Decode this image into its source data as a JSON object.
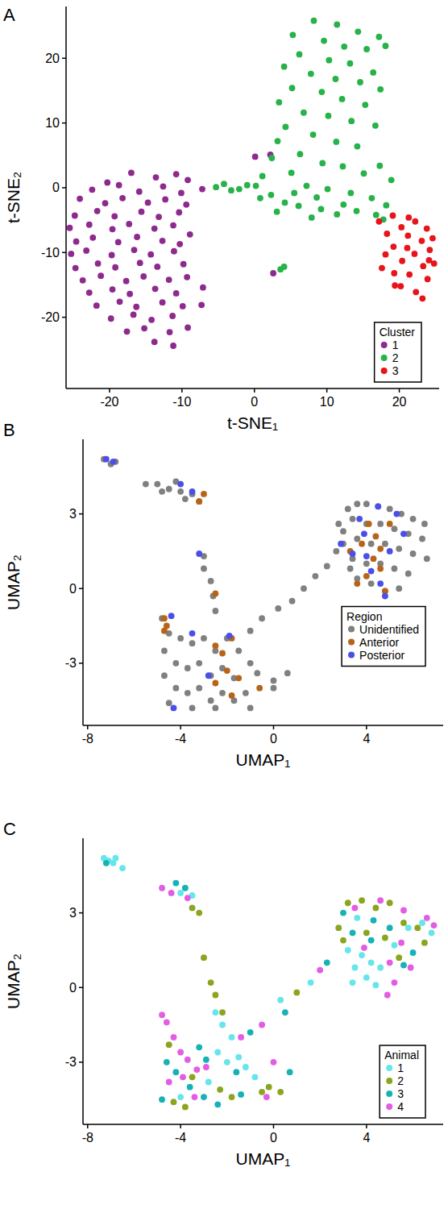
{
  "chart_data": [
    {
      "type": "scatter",
      "title": "A",
      "x_label": "t-SNE₁",
      "y_label": "t-SNE₂",
      "legend_title": "Cluster",
      "legend": "lower right",
      "marker": "circle",
      "grid": false,
      "xlim": [
        -26,
        25.5
      ],
      "ylim": [
        -31,
        28
      ],
      "xticks": [
        -20,
        -10,
        0,
        10,
        20
      ],
      "yticks": [
        -20,
        -10,
        0,
        10,
        20
      ],
      "series": [
        {
          "name": "1",
          "color": "#8e2a8e",
          "x": [
            -17,
            -13.6,
            -10.8,
            -20.3,
            -9.2,
            -22.4,
            -18.7,
            -15.9,
            -12.6,
            -10.1,
            -7.2,
            -24.1,
            -20.6,
            -18.2,
            -14.7,
            -12.3,
            -9.4,
            -24.8,
            -21.7,
            -19.3,
            -15.6,
            -13.2,
            -10.4,
            -25.5,
            -22.8,
            -19.6,
            -17.3,
            -13.8,
            -11.2,
            -8.9,
            -24.6,
            -22.3,
            -18.8,
            -16.2,
            -12.7,
            -10.3,
            -25.3,
            -23.2,
            -19.7,
            -16.6,
            -14.3,
            -11.1,
            -24.7,
            -21.6,
            -19.2,
            -15.8,
            -13.4,
            -9.8,
            -23.7,
            -21.2,
            -17.7,
            -15.3,
            -11.8,
            -9.3,
            -22.8,
            -19.6,
            -17.2,
            -13.7,
            -10.8,
            -21.8,
            -18.6,
            -16.3,
            -12.7,
            -9.9,
            -19.8,
            -16.7,
            -14.2,
            -11.3,
            -17.6,
            -15.2,
            -11.7,
            -9.2,
            -13.8,
            -11.2,
            -7.1,
            -7.3,
            2.6,
            0.1,
            2.2
          ],
          "values": [
            2.3,
            1.6,
            2.1,
            0.8,
            1.2,
            -0.3,
            0.4,
            -0.6,
            0.2,
            -0.8,
            -0.2,
            -1.7,
            -2.4,
            -1.6,
            -2.3,
            -1.8,
            -2.6,
            -4.3,
            -3.6,
            -4.4,
            -3.7,
            -4.5,
            -3.8,
            -6.2,
            -5.7,
            -6.4,
            -5.6,
            -6.3,
            -5.8,
            -7.2,
            -8.3,
            -7.7,
            -8.4,
            -7.6,
            -8.2,
            -8.7,
            -10.2,
            -9.7,
            -10.4,
            -9.6,
            -10.3,
            -9.8,
            -12.4,
            -11.7,
            -12.3,
            -11.6,
            -12.2,
            -11.8,
            -14.3,
            -13.6,
            -14.4,
            -13.7,
            -14.2,
            -13.8,
            -16.2,
            -15.7,
            -16.4,
            -15.6,
            -16.3,
            -18.2,
            -17.6,
            -18.4,
            -17.7,
            -18.3,
            -20.2,
            -19.6,
            -20.4,
            -19.8,
            -22.2,
            -21.7,
            -22.3,
            -21.6,
            -23.8,
            -24.4,
            -15.4,
            -18.1,
            -13.2,
            4.8,
            5.1
          ]
        },
        {
          "name": "2",
          "color": "#27b24a",
          "x": [
            8.2,
            11.4,
            14.3,
            17.2,
            5.3,
            9.6,
            12.4,
            15.5,
            18.1,
            6.2,
            10.3,
            13.2,
            16.4,
            4.1,
            7.8,
            11.2,
            14.6,
            17.4,
            5.2,
            9.3,
            12.1,
            15.3,
            3.4,
            6.8,
            10.2,
            13.4,
            16.7,
            4.3,
            8.1,
            11.3,
            14.2,
            6.3,
            9.4,
            12.2,
            15.1,
            17.3,
            3.2,
            2.4,
            5.1,
            7.2,
            10.1,
            13.3,
            16.2,
            18.2,
            1.1,
            0.2,
            -2.1,
            -4.2,
            -5.3,
            2.3,
            4.2,
            6.1,
            9.2,
            11.4,
            14.1,
            16.8,
            18.9,
            0.8,
            3.1,
            7.9,
            12.3,
            3.6,
            4.1,
            17.8,
            5.5,
            8.6,
            -1,
            -3.2
          ],
          "values": [
            25.8,
            25.2,
            24.1,
            23.3,
            23.6,
            22.7,
            21.8,
            21.4,
            21.9,
            20.6,
            19.7,
            19.2,
            17.8,
            18.7,
            17.6,
            16.8,
            16.3,
            15.2,
            15.4,
            14.8,
            13.7,
            12.8,
            13.2,
            11.6,
            11.1,
            10.3,
            9.6,
            9.4,
            8.2,
            7.1,
            6.4,
            5.2,
            3.8,
            3.3,
            2.2,
            3.4,
            7.2,
            4.6,
            2.3,
            0.3,
            -0.2,
            -0.8,
            -1.6,
            -2.7,
            1.8,
            0.3,
            -0.2,
            0.6,
            0.1,
            -1.1,
            -2.3,
            -2.8,
            -3.3,
            -4.1,
            -3.6,
            -4.2,
            1.2,
            -1.6,
            -3.7,
            -4.6,
            -2.6,
            -12.6,
            -12.2,
            -4.9,
            -0.8,
            -1.5,
            0.4,
            -0.4
          ]
        },
        {
          "name": "3",
          "color": "#e8141c",
          "x": [
            17.2,
            19.1,
            20.3,
            22.2,
            23.8,
            18.3,
            21.2,
            23.1,
            24.6,
            19.2,
            22.1,
            24.2,
            20.4,
            23.3,
            24.8,
            19.3,
            21.4,
            23.9,
            20.2,
            22.3,
            23.2,
            18.1,
            17.6,
            21.1,
            24.1,
            19.4,
            21.3
          ],
          "values": [
            -5.2,
            -4.3,
            -6.1,
            -5.2,
            -6.3,
            -7.1,
            -7.4,
            -8.2,
            -7.8,
            -9.1,
            -10.2,
            -9.6,
            -11.3,
            -12.1,
            -11.7,
            -13.2,
            -13.4,
            -14.1,
            -15.2,
            -16.1,
            -17.1,
            -10.3,
            -12.4,
            -9.3,
            -11.2,
            -15.1,
            -4.6
          ]
        }
      ]
    },
    {
      "type": "scatter",
      "title": "B",
      "x_label": "UMAP₁",
      "y_label": "UMAP₂",
      "legend_title": "Region",
      "legend": "center right",
      "marker": "circle",
      "grid": false,
      "xlim": [
        -8.2,
        7.3
      ],
      "ylim": [
        -5.5,
        6
      ],
      "xticks": [
        -8,
        -4,
        0,
        4
      ],
      "yticks": [
        -3,
        0,
        3
      ],
      "series": [
        {
          "name": "Unidentified",
          "color": "#808080",
          "x": [
            -7.3,
            -7,
            -6.8,
            -5.5,
            -5,
            -4.5,
            -4,
            -3.5,
            -4.8,
            -3.2,
            -4.2,
            -3.8,
            -3,
            -3,
            -2.7,
            -2.6,
            -2.5,
            -4.8,
            -4.5,
            -4,
            -3.5,
            -3,
            -2.5,
            -2,
            -1.5,
            -1,
            -4.7,
            -4.2,
            -3.7,
            -3.2,
            -2.7,
            -2.2,
            -1.7,
            -0.7,
            0,
            -4.7,
            -4.2,
            -3.7,
            -3.2,
            -2.7,
            -2.2,
            -1.7,
            -1.2,
            -4.5,
            -3.5,
            -2.5,
            -1,
            0,
            0.6,
            -1,
            -0.5,
            0.2,
            0.8,
            1.3,
            1.8,
            2.3,
            2.7,
            3,
            3.2,
            3.6,
            4,
            4.5,
            5,
            5.5,
            6,
            6.5,
            2.8,
            3.4,
            4,
            4.6,
            5.2,
            5.8,
            6.4,
            3,
            3.6,
            4.2,
            4.8,
            5.4,
            6,
            6.6,
            3.4,
            4,
            4.6,
            5.2,
            5.8,
            3.6,
            4.2,
            4.8,
            5.4,
            3.3
          ],
          "values": [
            5.2,
            5,
            5.1,
            4.2,
            4.2,
            4,
            3.9,
            3.8,
            3.9,
            3.5,
            4.3,
            3.6,
            1.3,
            0.8,
            0.3,
            -0.3,
            -0.9,
            -1.2,
            -1.8,
            -2,
            -2.2,
            -2,
            -2.5,
            -2,
            -2.5,
            -3,
            -2.5,
            -3,
            -3.2,
            -3,
            -3.5,
            -3.2,
            -3.6,
            -3.4,
            -3.7,
            -3.5,
            -4,
            -4.2,
            -4,
            -4.5,
            -4.2,
            -4.5,
            -4.2,
            -4.6,
            -4.8,
            -4.8,
            -4.8,
            -4,
            -3.4,
            -1.7,
            -1.2,
            -0.8,
            -0.5,
            0,
            0.5,
            0.9,
            1.5,
            2.3,
            3.2,
            3.4,
            3.4,
            3.3,
            3.2,
            3,
            2.8,
            2.6,
            2.6,
            2.8,
            2.6,
            2.6,
            2.4,
            2.2,
            2,
            1.8,
            2,
            1.8,
            1.8,
            1.6,
            1.4,
            1.2,
            1.2,
            1,
            1,
            0.8,
            0.6,
            0.4,
            0.2,
            -0.1,
            0,
            0.8
          ]
        },
        {
          "name": "Anterior",
          "color": "#b86418",
          "x": [
            -3,
            -3.2,
            -4.7,
            -4.6,
            -4.7,
            -2.5,
            -2.5,
            -2.2,
            -1.8,
            -2,
            -2.5,
            -1.5,
            -0.6,
            -1.8,
            3.8,
            4.3,
            4.6,
            4,
            3.6,
            4.4,
            5,
            4.8,
            4.1,
            4.6,
            3.3
          ],
          "values": [
            3.8,
            3.5,
            -1.2,
            -1.5,
            -1.7,
            -0.2,
            -2.3,
            -2.6,
            -2,
            -3.3,
            -3.8,
            -3.6,
            -4,
            -4.3,
            1.8,
            1.2,
            0.8,
            0.5,
            0.2,
            2.1,
            2.6,
            -0.1,
            2.6,
            1.6,
            1.5
          ]
        },
        {
          "name": "Posterior",
          "color": "#4b4fe8",
          "x": [
            -7.2,
            -6.9,
            -4,
            -3.5,
            -3.2,
            -4.4,
            -3.5,
            -1.9,
            -2.8,
            -4.3,
            3.4,
            3.9,
            4.2,
            4.6,
            5,
            5.3,
            4.5,
            5.6,
            4,
            4.8,
            3.7,
            2.9
          ],
          "values": [
            5.2,
            5.1,
            4.2,
            3.9,
            1.4,
            -1.1,
            -1.8,
            -1.9,
            -3.5,
            -4.8,
            1.4,
            2.2,
            0.7,
            0.2,
            1.5,
            3,
            3.3,
            2.2,
            1.3,
            -0.3,
            2.8,
            1.8
          ]
        }
      ]
    },
    {
      "type": "scatter",
      "title": "C",
      "x_label": "UMAP₁",
      "y_label": "UMAP₂",
      "legend_title": "Animal",
      "legend": "lower right",
      "marker": "circle",
      "grid": false,
      "xlim": [
        -8.2,
        7.3
      ],
      "ylim": [
        -5.5,
        6
      ],
      "xticks": [
        -8,
        -4,
        0,
        4
      ],
      "yticks": [
        -3,
        0,
        3
      ],
      "series": [
        {
          "name": "1",
          "color": "#66e6ea",
          "x": [
            -7.3,
            -7.1,
            -6.9,
            -7.2,
            -6.8,
            -6.5,
            -4,
            -3.5,
            -2.5,
            -2.2,
            -1.8,
            -1.5,
            -1.2,
            -2,
            -2.4,
            -0.8,
            0.3,
            1.6,
            3.5,
            4,
            4.4,
            3.8,
            4.2,
            3.2,
            4.6,
            5.2,
            3.6,
            5.8,
            6.4,
            6.8,
            3.4,
            -4,
            -2.8
          ],
          "values": [
            5.2,
            5.1,
            5,
            5.1,
            5.2,
            4.8,
            3.8,
            3.7,
            -1,
            -1.5,
            -2,
            -2.8,
            -3.2,
            -3,
            -2.6,
            -3.6,
            -0.5,
            0.2,
            0.8,
            0.4,
            0.1,
            1.3,
            1,
            1.5,
            0.8,
            1.7,
            2.8,
            2.4,
            2.6,
            2.2,
            0.2,
            -4.4,
            -3.8
          ]
        },
        {
          "name": "2",
          "color": "#8aa51e",
          "x": [
            -3.5,
            -3.2,
            -3,
            -2.7,
            -2.5,
            -2.2,
            -0.2,
            0.3,
            -0.5,
            -4.3,
            -3.8,
            -1.8,
            -4.5,
            2.8,
            3.2,
            3.8,
            4.4,
            5,
            5.6,
            6.2,
            3,
            4,
            5.4,
            4.8,
            6.5,
            1,
            -3.5,
            -2.3
          ],
          "values": [
            3.2,
            3,
            1.2,
            0.2,
            -0.3,
            -1,
            -4,
            -4.2,
            -4.2,
            -4.6,
            -4.8,
            -4.4,
            -2.3,
            2.4,
            3.4,
            3.5,
            3.2,
            3.4,
            2.6,
            2.4,
            1.9,
            2.2,
            1.2,
            2,
            1.8,
            -0.2,
            -3.6,
            -4.1
          ]
        },
        {
          "name": "3",
          "color": "#17b2b6",
          "x": [
            -7.2,
            -4.2,
            -3.8,
            -4.6,
            -4.2,
            -3.6,
            -3,
            -2.4,
            -1.4,
            -3.2,
            -1,
            0.7,
            0.5,
            2.3,
            3.4,
            4.3,
            5,
            6,
            4.2,
            5.6,
            3,
            -4.8,
            -2.9,
            -1.6
          ],
          "values": [
            5,
            4.2,
            4,
            -3,
            -3.4,
            -4,
            -4.4,
            -4.7,
            -4.3,
            -2.4,
            -1.8,
            -3.4,
            -1,
            1,
            2.2,
            2.7,
            2.4,
            1.4,
            1.9,
            0.9,
            3,
            -4.5,
            -2.9,
            -3.4
          ]
        },
        {
          "name": "4",
          "color": "#e35de3",
          "x": [
            -4.8,
            -4.4,
            -3.7,
            -4.8,
            -4.6,
            -4.3,
            -4,
            -3.7,
            -3.3,
            -4.5,
            -3.9,
            -3.4,
            -2.9,
            -1.4,
            -0.5,
            0,
            2,
            3.5,
            4.6,
            5.6,
            6.6,
            6.9,
            5.5,
            5.9,
            5.2,
            4.9,
            3.9,
            5,
            -0.3
          ],
          "values": [
            4,
            3.8,
            3.6,
            -1.1,
            -1.4,
            -2,
            -2.6,
            -2.9,
            -3.3,
            -3.8,
            -3.6,
            -4.4,
            -3.2,
            -2,
            -1.5,
            -3,
            0.7,
            3.2,
            3.5,
            3.1,
            2.8,
            2.5,
            1.8,
            0.8,
            0.2,
            -0.3,
            1.6,
            1,
            -4.4
          ]
        }
      ]
    }
  ]
}
